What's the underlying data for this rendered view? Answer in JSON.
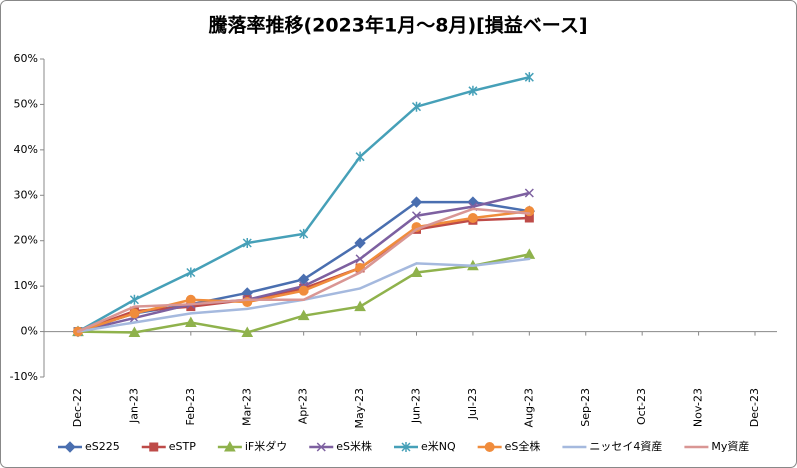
{
  "chart_data": {
    "type": "line",
    "title": "騰落率推移(2023年1月～8月)[損益ベース]",
    "categories": [
      "Dec-22",
      "Jan-23",
      "Feb-23",
      "Mar-23",
      "Apr-23",
      "May-23",
      "Jun-23",
      "Jul-23",
      "Aug-23",
      "Sep-23",
      "Oct-23",
      "Nov-23",
      "Dec-23"
    ],
    "ylim": [
      -10,
      60
    ],
    "yticks": [
      {
        "value": -10,
        "label": "-10%"
      },
      {
        "value": 0,
        "label": "0%"
      },
      {
        "value": 10,
        "label": "10%"
      },
      {
        "value": 20,
        "label": "20%"
      },
      {
        "value": 30,
        "label": "30%"
      },
      {
        "value": 40,
        "label": "40%"
      },
      {
        "value": 50,
        "label": "50%"
      },
      {
        "value": 60,
        "label": "60%"
      }
    ],
    "grid": false,
    "legend": "bottom",
    "series": [
      {
        "name": "eS225",
        "color": "#4a6fb0",
        "marker": "diamond",
        "values": [
          0,
          4,
          6,
          8.5,
          11.5,
          19.5,
          28.5,
          28.5,
          26.5,
          null,
          null,
          null,
          null
        ]
      },
      {
        "name": "eSTP",
        "color": "#be4b48",
        "marker": "square",
        "values": [
          0,
          4.5,
          5.5,
          7,
          9.5,
          14,
          22.5,
          24.5,
          25,
          null,
          null,
          null,
          null
        ]
      },
      {
        "name": "iF米ダウ",
        "color": "#8fb24c",
        "marker": "triangle",
        "values": [
          0,
          -0.2,
          2,
          -0.2,
          3.5,
          5.5,
          13,
          14.5,
          17,
          null,
          null,
          null,
          null
        ]
      },
      {
        "name": "eS米株",
        "color": "#7d60a0",
        "marker": "x",
        "values": [
          0,
          3,
          6,
          7,
          10,
          16,
          25.5,
          27.5,
          30.5,
          null,
          null,
          null,
          null
        ]
      },
      {
        "name": "e米NQ",
        "color": "#46a0b8",
        "marker": "star",
        "values": [
          0,
          7,
          13,
          19.5,
          21.5,
          38.5,
          49.5,
          53,
          56,
          null,
          null,
          null,
          null
        ]
      },
      {
        "name": "eS全株",
        "color": "#f08c3c",
        "marker": "circle",
        "values": [
          0,
          4,
          7,
          6.5,
          9,
          14,
          23,
          25,
          26.5,
          null,
          null,
          null,
          null
        ]
      },
      {
        "name": "ニッセイ4資産",
        "color": "#a5b9de",
        "marker": "none",
        "values": [
          0,
          2,
          4,
          5,
          7,
          9.5,
          15,
          14.5,
          16,
          null,
          null,
          null,
          null
        ]
      },
      {
        "name": "My資産",
        "color": "#d99694",
        "marker": "none",
        "values": [
          0,
          5.5,
          6,
          7,
          7,
          13,
          22.5,
          27,
          26,
          null,
          null,
          null,
          null
        ]
      }
    ]
  }
}
